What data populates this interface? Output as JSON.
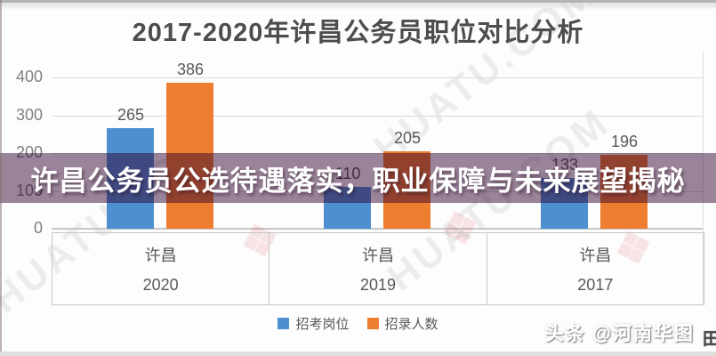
{
  "chart_data": {
    "type": "bar",
    "title": "2017-2020年许昌公务员职位对比分析",
    "group_label": "许昌",
    "categories": [
      "2020",
      "2019",
      "2017"
    ],
    "series": [
      {
        "name": "招考岗位",
        "color": "#4E8FD0",
        "values": [
          265,
          110,
          133
        ]
      },
      {
        "name": "招录人数",
        "color": "#ED7D31",
        "values": [
          386,
          205,
          196
        ]
      }
    ],
    "xlabel": "",
    "ylabel": "",
    "ylim": [
      0,
      400
    ],
    "yticks": [
      0,
      100,
      200,
      300,
      400
    ],
    "grid": true,
    "legend_position": "bottom"
  },
  "overlay": {
    "headline": "许昌公务员公选待遇落实，职业保障与未来展望揭秘",
    "bg_color": "#5D3E58"
  },
  "watermarks": {
    "source_badge": "头条 @河南华图",
    "diagonal_text": "HUATU.COM",
    "logo_glyph": "❖",
    "corner_glyph": "田"
  },
  "colors": {
    "bar_blue": "#4E8FD0",
    "bar_orange": "#ED7D31",
    "axis_text": "#808080",
    "label_text": "#595959",
    "title_text": "#4d4d4d"
  }
}
